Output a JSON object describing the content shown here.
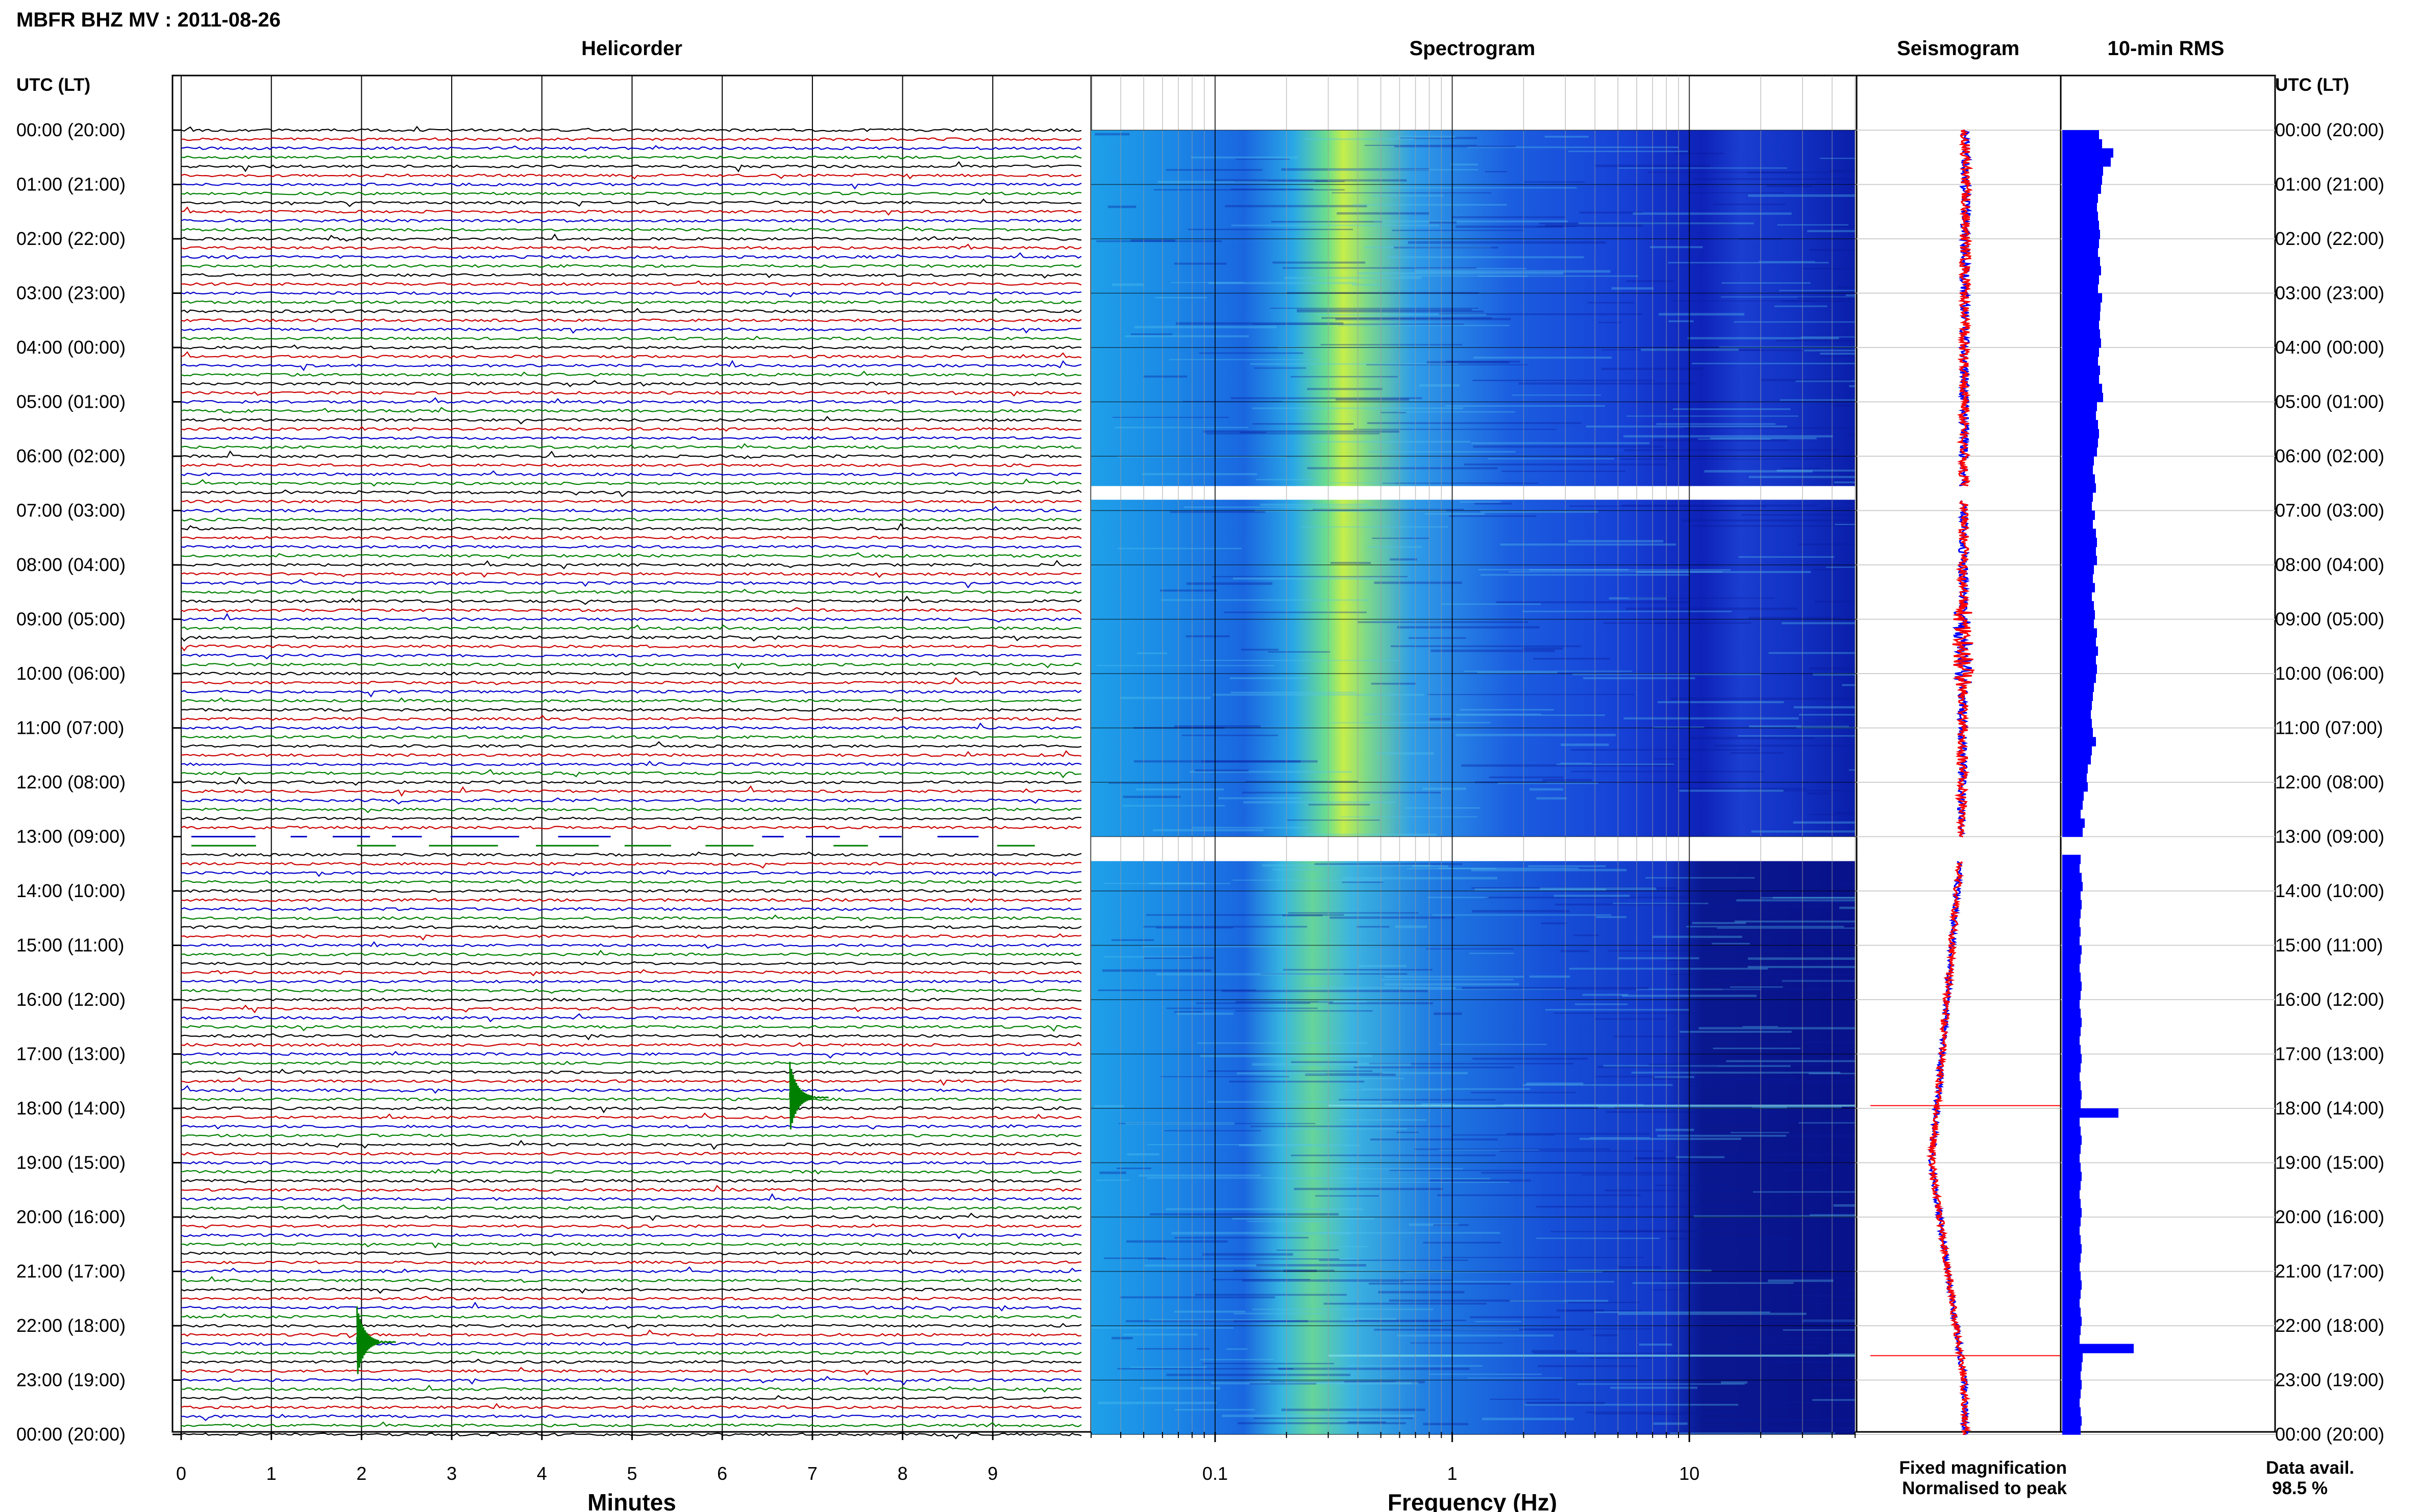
{
  "header": {
    "title": "MBFR BHZ MV : 2011-08-26"
  },
  "panels": {
    "helicorder": "Helicorder",
    "spectrogram": "Spectrogram",
    "seismogram": "Seismogram",
    "rms": "10-min RMS"
  },
  "time_axis": {
    "left_label": "UTC (LT)",
    "right_label": "UTC (LT)",
    "ticks": [
      "00:00 (20:00)",
      "01:00 (21:00)",
      "02:00 (22:00)",
      "03:00 (23:00)",
      "04:00 (00:00)",
      "05:00 (01:00)",
      "06:00 (02:00)",
      "07:00 (03:00)",
      "08:00 (04:00)",
      "09:00 (05:00)",
      "10:00 (06:00)",
      "11:00 (07:00)",
      "12:00 (08:00)",
      "13:00 (09:00)",
      "14:00 (10:00)",
      "15:00 (11:00)",
      "16:00 (12:00)",
      "17:00 (13:00)",
      "18:00 (14:00)",
      "19:00 (15:00)",
      "20:00 (16:00)",
      "21:00 (17:00)",
      "22:00 (18:00)",
      "23:00 (19:00)",
      "00:00 (20:00)"
    ]
  },
  "footer": {
    "minutes_label": "Minutes",
    "frequency_label": "Frequency (Hz)",
    "legend_fixed": "Fixed magnification",
    "legend_normalised": "Normalised to peak",
    "data_avail_label": "Data avail.",
    "data_avail_value": "98.5 %"
  },
  "colors": {
    "trace_cycle": [
      "#000000",
      "#cc0000",
      "#0000cc",
      "#008000"
    ],
    "rms_bar": "#0000ff",
    "seismo_fixed": "#0000ff",
    "seismo_norm": "#ff0000",
    "legend_fixed": "#0000ff",
    "legend_normalised": "#ff0000"
  },
  "chart_data": [
    {
      "type": "line",
      "name": "helicorder",
      "xlabel": "Minutes",
      "x_ticks": [
        0,
        1,
        2,
        3,
        4,
        5,
        6,
        7,
        8,
        9
      ],
      "xlim": [
        0,
        10
      ],
      "lines_per_hour": 6,
      "hours": 24,
      "gaps": [
        {
          "start_hour": 13.0,
          "end_hour": 13.2
        }
      ],
      "events": [
        {
          "hour": 17.8,
          "minute": 6.75,
          "amplitude": "large"
        },
        {
          "hour": 22.3,
          "minute": 1.95,
          "amplitude": "large"
        }
      ]
    },
    {
      "type": "heatmap",
      "name": "spectrogram",
      "xlabel": "Frequency (Hz)",
      "x_scale": "log",
      "x_ticks": [
        0.1,
        1,
        10
      ],
      "xlim": [
        0.03,
        50
      ],
      "peak_band_hz": [
        0.25,
        0.4
      ],
      "gaps": [
        {
          "start_hour": 6.55,
          "end_hour": 6.8
        },
        {
          "start_hour": 13.0,
          "end_hour": 13.45
        }
      ]
    },
    {
      "type": "line",
      "name": "seismogram",
      "series": [
        {
          "name": "Fixed magnification",
          "color": "#0000ff"
        },
        {
          "name": "Normalised to peak",
          "color": "#ff0000"
        }
      ],
      "spikes": [
        {
          "hour": 17.95
        },
        {
          "hour": 22.55
        }
      ]
    },
    {
      "type": "bar",
      "name": "rms",
      "orientation": "horizontal",
      "interval_minutes": 10,
      "values": [
        0.72,
        0.78,
        1.0,
        0.95,
        0.8,
        0.78,
        0.76,
        0.7,
        0.68,
        0.7,
        0.72,
        0.74,
        0.72,
        0.7,
        0.74,
        0.76,
        0.72,
        0.7,
        0.78,
        0.75,
        0.74,
        0.72,
        0.74,
        0.76,
        0.72,
        0.7,
        0.74,
        0.72,
        0.78,
        0.8,
        0.68,
        0.66,
        0.7,
        0.72,
        0.7,
        0.68,
        0.62,
        0.6,
        0.64,
        0.66,
        0.6,
        0.58,
        0.64,
        0.6,
        0.66,
        0.68,
        0.66,
        0.68,
        0.62,
        0.6,
        0.64,
        0.58,
        0.62,
        0.64,
        0.62,
        0.68,
        0.66,
        0.7,
        0.66,
        0.68,
        0.66,
        0.62,
        0.6,
        0.58,
        0.56,
        0.58,
        0.6,
        0.66,
        0.58,
        0.56,
        0.5,
        0.48,
        0.5,
        0.42,
        0.4,
        0.36,
        0.44,
        0.4,
        0.36,
        0.38,
        0.36,
        0.34,
        0.38,
        0.4,
        0.36,
        0.38,
        0.36,
        0.34,
        0.36,
        0.34,
        0.38,
        0.36,
        0.34,
        0.36,
        0.38,
        0.36,
        0.34,
        0.36,
        0.38,
        0.36,
        0.34,
        0.36,
        0.38,
        0.36,
        0.34,
        0.36,
        0.38,
        0.36,
        1.1,
        0.34,
        0.36,
        0.38,
        0.36,
        0.34,
        0.36,
        0.38,
        0.36,
        0.34,
        0.36,
        0.38,
        0.36,
        0.34,
        0.36,
        0.38,
        0.36,
        0.34,
        0.36,
        0.38,
        0.36,
        0.34,
        0.36,
        0.38,
        0.36,
        0.34,
        1.4,
        0.4,
        0.38,
        0.36,
        0.38,
        0.36,
        0.34,
        0.36,
        0.38,
        0.36
      ],
      "gaps": [
        {
          "start_hour": 13.0,
          "end_hour": 13.2
        }
      ]
    }
  ]
}
